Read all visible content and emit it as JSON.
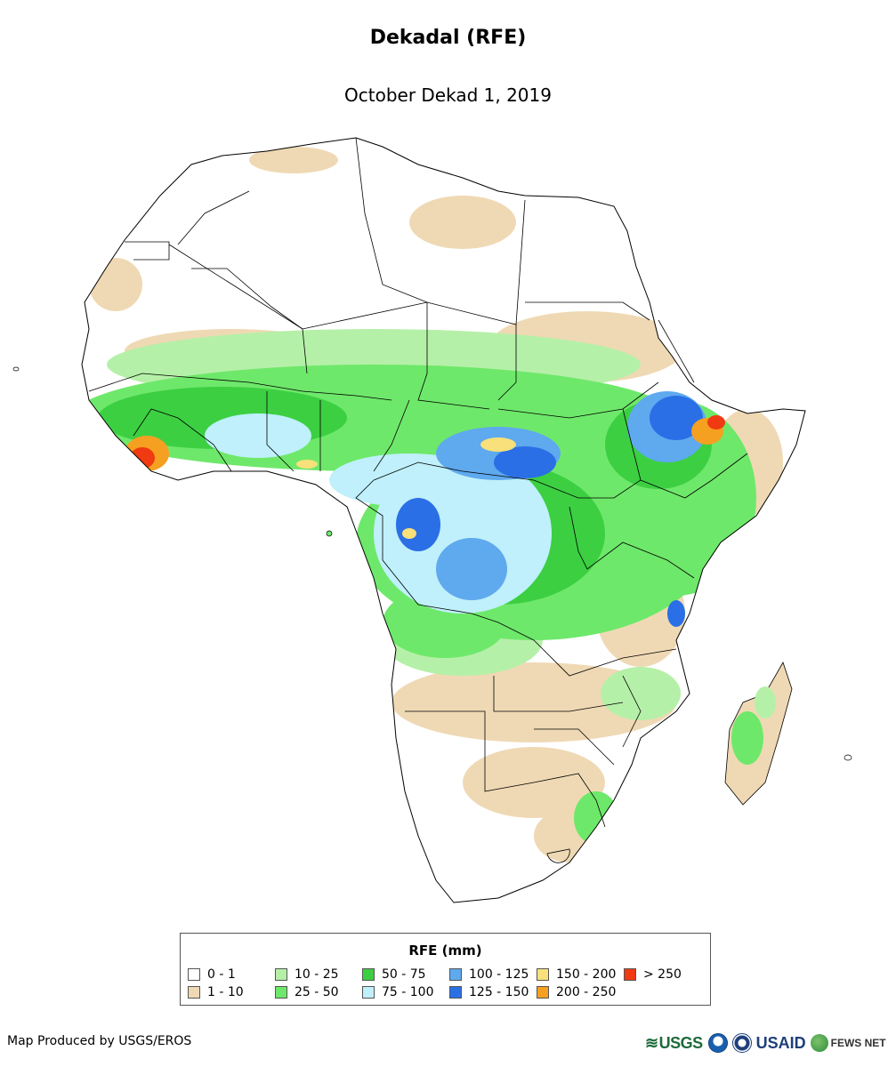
{
  "title": "Dekadal (RFE)",
  "subtitle": "October Dekad 1, 2019",
  "legend": {
    "title": "RFE (mm)",
    "items": [
      {
        "label": "0 - 1",
        "color": "#ffffff"
      },
      {
        "label": "1 - 10",
        "color": "#efd9b4"
      },
      {
        "label": "10 - 25",
        "color": "#b5f0a8"
      },
      {
        "label": "25 - 50",
        "color": "#6ee86a"
      },
      {
        "label": "50 - 75",
        "color": "#3ccf42"
      },
      {
        "label": "75 - 100",
        "color": "#bff0fb"
      },
      {
        "label": "100 - 125",
        "color": "#5fa9ee"
      },
      {
        "label": "125 - 150",
        "color": "#2a6fe6"
      },
      {
        "label": "150 - 200",
        "color": "#f9e07a"
      },
      {
        "label": "200 - 250",
        "color": "#f5a020"
      },
      {
        "label": "> 250",
        "color": "#ef3a12"
      }
    ]
  },
  "credit": "Map Produced by USGS/EROS",
  "logos": {
    "usgs": "USGS",
    "usaid": "USAID",
    "fews": "FEWS NET"
  }
}
